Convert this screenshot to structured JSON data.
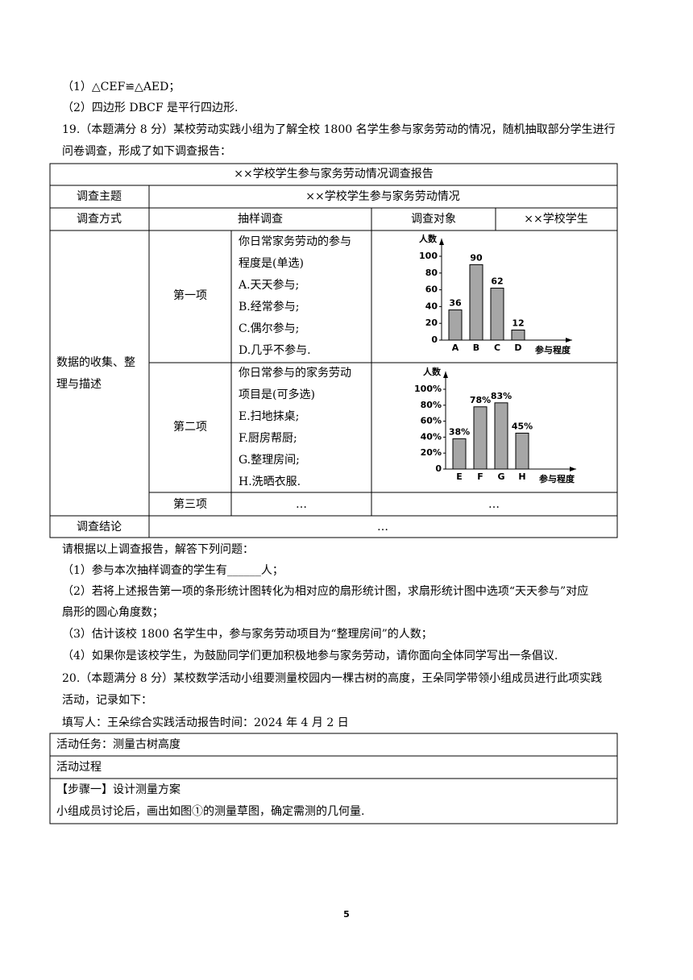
{
  "part_lines": [
    "（1）△CEF≌△AED；",
    "（2）四边形 DBCF 是平行四边形."
  ],
  "problem19": {
    "intro": [
      "19.（本题满分 8 分）某校劳动实践小组为了解全校 1800 名学生参与家务劳动的情况，随机抽取部分学生进行",
      "问卷调查，形成了如下调查报告："
    ],
    "report": {
      "title": "××学校学生参与家务劳动情况调查报告",
      "topic_label": "调查主题",
      "topic": "××学校学生参与家务劳动情况",
      "method_label": "调查方式",
      "method": "抽样调查",
      "object_label": "调查对象",
      "object": "××学校学生",
      "data_label": [
        "数据的收集、整",
        "理与描述"
      ],
      "item1": {
        "label": "第一项",
        "question": [
          "你日常家务劳动的参与",
          "程度是(单选)",
          "A.天天参与;",
          "B.经常参与;",
          "C.偶尔参与;",
          "D.几乎不参与."
        ],
        "chart": {
          "type": "bar",
          "y_label": "人数",
          "x_label": "参与程度",
          "categories": [
            "A",
            "B",
            "C",
            "D"
          ],
          "values": [
            36,
            90,
            62,
            12
          ],
          "ylim": [
            0,
            100
          ],
          "yticks": [
            0,
            20,
            40,
            60,
            80,
            100
          ],
          "color": "#a6a6a6"
        }
      },
      "item2": {
        "label": "第二项",
        "question": [
          "你日常参与的家务劳动",
          "项目是(可多选)",
          "E.扫地抹桌;",
          "F.厨房帮厨;",
          "G.整理房间;",
          "H.洗晒衣服."
        ],
        "chart": {
          "type": "bar",
          "y_label": "人数",
          "x_label": "参与程度",
          "categories": [
            "E",
            "F",
            "G",
            "H"
          ],
          "values": [
            38,
            78,
            83,
            45
          ],
          "value_labels": [
            "38%",
            "78%",
            "83%",
            "45%"
          ],
          "ylim": [
            0,
            100
          ],
          "yticks": [
            0,
            {
              "value": 20,
              "label": "20%"
            },
            {
              "value": 40,
              "label": "40%"
            },
            {
              "value": 60,
              "label": "60%"
            },
            {
              "value": 80,
              "label": "80%"
            },
            {
              "value": 100,
              "label": "100%"
            }
          ],
          "color": "#a6a6a6"
        }
      },
      "item3": {
        "label": "第三项",
        "question": "…",
        "chart": "…"
      },
      "conclusion_label": "调查结论",
      "conclusion": "…"
    },
    "questions": [
      "请根据以上调查报告，解答下列问题：",
      "（1）参与本次抽样调查的学生有______人；",
      "（2）若将上述报告第一项的条形统计图转化为相对应的扇形统计图，求扇形统计图中选项“天天参与”对应",
      "扇形的圆心角度数；",
      "（3）估计该校 1800 名学生中，参与家务劳动项目为“整理房间”的人数；",
      "（4）如果你是该校学生，为鼓励同学们更加积极地参与家务劳动，请你面向全体同学写出一条倡议."
    ]
  },
  "problem20": {
    "intro": [
      "20.（本题满分 8 分）某校数学活动小组要测量校园内一棵古树的高度，王朵同学带领小组成员进行此项实践",
      "活动，记录如下：",
      "填写人：王朵综合实践活动报告时间：2024 年 4 月 2 日"
    ],
    "table": {
      "task": "活动任务：测量古树高度",
      "process": "活动过程",
      "step1": "【步骤一】设计测量方案",
      "step1_text": "小组成员讨论后，画出如图①的测量草图，确定需测的几何量."
    }
  },
  "page_number": "5"
}
